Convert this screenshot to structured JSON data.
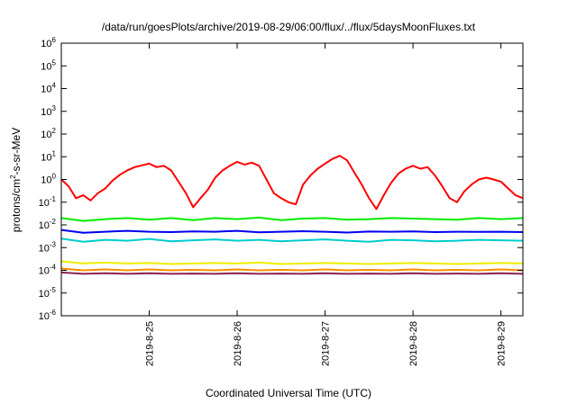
{
  "chart_data": {
    "type": "line",
    "title": "/data/run/goesPlots/archive/2019-08-29/06:00/flux/../flux/5daysMoonFluxes.txt",
    "xlabel": "Coordinated Universal Time (UTC)",
    "ylabel_base": "protons/cm",
    "ylabel_sup": "2",
    "ylabel_rest": "-s-sr-MeV",
    "yscale": "log",
    "ylim": [
      1e-06,
      1000000.0
    ],
    "xlim": [
      "2019-08-24T00:00",
      "2019-08-29T06:00"
    ],
    "y_ticks": [
      {
        "value": 1e-06,
        "base": "10",
        "exp": "-6"
      },
      {
        "value": 1e-05,
        "base": "10",
        "exp": "-5"
      },
      {
        "value": 0.0001,
        "base": "10",
        "exp": "-4"
      },
      {
        "value": 0.001,
        "base": "10",
        "exp": "-3"
      },
      {
        "value": 0.01,
        "base": "10",
        "exp": "-2"
      },
      {
        "value": 0.1,
        "base": "10",
        "exp": "-1"
      },
      {
        "value": 1,
        "base": "10",
        "exp": "0"
      },
      {
        "value": 10,
        "base": "10",
        "exp": "1"
      },
      {
        "value": 100,
        "base": "10",
        "exp": "2"
      },
      {
        "value": 1000,
        "base": "10",
        "exp": "3"
      },
      {
        "value": 10000,
        "base": "10",
        "exp": "4"
      },
      {
        "value": 100000,
        "base": "10",
        "exp": "5"
      },
      {
        "value": 1000000,
        "base": "10",
        "exp": "6"
      }
    ],
    "x_ticks": [
      "2019-8-25",
      "2019-8-26",
      "2019-8-27",
      "2019-8-28",
      "2019-8-29"
    ],
    "series": [
      {
        "color": "#ff0000",
        "points": [
          [
            "2019-08-24T00:00",
            1.0
          ],
          [
            "2019-08-24T02:00",
            0.5
          ],
          [
            "2019-08-24T04:00",
            0.15
          ],
          [
            "2019-08-24T06:00",
            0.2
          ],
          [
            "2019-08-24T08:00",
            0.12
          ],
          [
            "2019-08-24T10:00",
            0.25
          ],
          [
            "2019-08-24T12:00",
            0.4
          ],
          [
            "2019-08-24T14:00",
            0.9
          ],
          [
            "2019-08-24T16:00",
            1.6
          ],
          [
            "2019-08-24T18:00",
            2.5
          ],
          [
            "2019-08-24T20:00",
            3.5
          ],
          [
            "2019-08-24T22:00",
            4.2
          ],
          [
            "2019-08-25T00:00",
            5.0
          ],
          [
            "2019-08-25T02:00",
            3.5
          ],
          [
            "2019-08-25T04:00",
            4.0
          ],
          [
            "2019-08-25T06:00",
            2.5
          ],
          [
            "2019-08-25T08:00",
            0.8
          ],
          [
            "2019-08-25T10:00",
            0.25
          ],
          [
            "2019-08-25T12:00",
            0.06
          ],
          [
            "2019-08-25T14:00",
            0.15
          ],
          [
            "2019-08-25T16:00",
            0.35
          ],
          [
            "2019-08-25T18:00",
            1.2
          ],
          [
            "2019-08-25T20:00",
            2.5
          ],
          [
            "2019-08-25T22:00",
            4.0
          ],
          [
            "2019-08-26T00:00",
            6.0
          ],
          [
            "2019-08-26T02:00",
            4.5
          ],
          [
            "2019-08-26T04:00",
            5.5
          ],
          [
            "2019-08-26T06:00",
            4.0
          ],
          [
            "2019-08-26T08:00",
            1.0
          ],
          [
            "2019-08-26T10:00",
            0.25
          ],
          [
            "2019-08-26T12:00",
            0.15
          ],
          [
            "2019-08-26T14:00",
            0.1
          ],
          [
            "2019-08-26T16:00",
            0.08
          ],
          [
            "2019-08-26T18:00",
            0.6
          ],
          [
            "2019-08-26T20:00",
            1.5
          ],
          [
            "2019-08-26T22:00",
            3.0
          ],
          [
            "2019-08-27T00:00",
            5.0
          ],
          [
            "2019-08-27T02:00",
            8.0
          ],
          [
            "2019-08-27T04:00",
            11.0
          ],
          [
            "2019-08-27T06:00",
            7.0
          ],
          [
            "2019-08-27T08:00",
            2.0
          ],
          [
            "2019-08-27T10:00",
            0.6
          ],
          [
            "2019-08-27T12:00",
            0.15
          ],
          [
            "2019-08-27T14:00",
            0.05
          ],
          [
            "2019-08-27T16:00",
            0.2
          ],
          [
            "2019-08-27T18:00",
            0.7
          ],
          [
            "2019-08-27T20:00",
            1.8
          ],
          [
            "2019-08-27T22:00",
            3.0
          ],
          [
            "2019-08-28T00:00",
            4.0
          ],
          [
            "2019-08-28T02:00",
            3.0
          ],
          [
            "2019-08-28T04:00",
            3.5
          ],
          [
            "2019-08-28T06:00",
            1.5
          ],
          [
            "2019-08-28T08:00",
            0.5
          ],
          [
            "2019-08-28T10:00",
            0.15
          ],
          [
            "2019-08-28T12:00",
            0.1
          ],
          [
            "2019-08-28T14:00",
            0.3
          ],
          [
            "2019-08-28T16:00",
            0.6
          ],
          [
            "2019-08-28T18:00",
            1.0
          ],
          [
            "2019-08-28T20:00",
            1.2
          ],
          [
            "2019-08-28T22:00",
            1.0
          ],
          [
            "2019-08-29T00:00",
            0.8
          ],
          [
            "2019-08-29T02:00",
            0.4
          ],
          [
            "2019-08-29T04:00",
            0.2
          ],
          [
            "2019-08-29T06:00",
            0.15
          ]
        ]
      },
      {
        "color": "#00ee00",
        "points": [
          [
            "2019-08-24T00:00",
            0.02
          ],
          [
            "2019-08-24T06:00",
            0.015
          ],
          [
            "2019-08-24T12:00",
            0.018
          ],
          [
            "2019-08-24T18:00",
            0.02
          ],
          [
            "2019-08-25T00:00",
            0.017
          ],
          [
            "2019-08-25T06:00",
            0.02
          ],
          [
            "2019-08-25T12:00",
            0.016
          ],
          [
            "2019-08-25T18:00",
            0.02
          ],
          [
            "2019-08-26T00:00",
            0.018
          ],
          [
            "2019-08-26T06:00",
            0.021
          ],
          [
            "2019-08-26T12:00",
            0.016
          ],
          [
            "2019-08-26T18:00",
            0.019
          ],
          [
            "2019-08-27T00:00",
            0.02
          ],
          [
            "2019-08-27T06:00",
            0.017
          ],
          [
            "2019-08-27T12:00",
            0.018
          ],
          [
            "2019-08-27T18:00",
            0.02
          ],
          [
            "2019-08-28T00:00",
            0.019
          ],
          [
            "2019-08-28T06:00",
            0.018
          ],
          [
            "2019-08-28T12:00",
            0.017
          ],
          [
            "2019-08-28T18:00",
            0.02
          ],
          [
            "2019-08-29T00:00",
            0.018
          ],
          [
            "2019-08-29T06:00",
            0.02
          ]
        ]
      },
      {
        "color": "#00cccc",
        "points": [
          [
            "2019-08-24T00:00",
            0.0025
          ],
          [
            "2019-08-24T06:00",
            0.0018
          ],
          [
            "2019-08-24T12:00",
            0.0022
          ],
          [
            "2019-08-24T18:00",
            0.002
          ],
          [
            "2019-08-25T00:00",
            0.0024
          ],
          [
            "2019-08-25T06:00",
            0.0019
          ],
          [
            "2019-08-25T12:00",
            0.0021
          ],
          [
            "2019-08-25T18:00",
            0.0023
          ],
          [
            "2019-08-26T00:00",
            0.002
          ],
          [
            "2019-08-26T06:00",
            0.0022
          ],
          [
            "2019-08-26T12:00",
            0.0019
          ],
          [
            "2019-08-26T18:00",
            0.0021
          ],
          [
            "2019-08-27T00:00",
            0.0023
          ],
          [
            "2019-08-27T06:00",
            0.002
          ],
          [
            "2019-08-27T12:00",
            0.0018
          ],
          [
            "2019-08-27T18:00",
            0.0022
          ],
          [
            "2019-08-28T00:00",
            0.0021
          ],
          [
            "2019-08-28T06:00",
            0.0019
          ],
          [
            "2019-08-28T12:00",
            0.002
          ],
          [
            "2019-08-28T18:00",
            0.0022
          ],
          [
            "2019-08-29T00:00",
            0.0021
          ],
          [
            "2019-08-29T06:00",
            0.002
          ]
        ]
      },
      {
        "color": "#0000ee",
        "points": [
          [
            "2019-08-24T00:00",
            0.006
          ],
          [
            "2019-08-24T06:00",
            0.0045
          ],
          [
            "2019-08-24T12:00",
            0.005
          ],
          [
            "2019-08-24T18:00",
            0.0055
          ],
          [
            "2019-08-25T00:00",
            0.005
          ],
          [
            "2019-08-25T06:00",
            0.0048
          ],
          [
            "2019-08-25T12:00",
            0.0052
          ],
          [
            "2019-08-25T18:00",
            0.005
          ],
          [
            "2019-08-26T00:00",
            0.0055
          ],
          [
            "2019-08-26T06:00",
            0.0047
          ],
          [
            "2019-08-26T12:00",
            0.005
          ],
          [
            "2019-08-26T18:00",
            0.0053
          ],
          [
            "2019-08-27T00:00",
            0.005
          ],
          [
            "2019-08-27T06:00",
            0.0046
          ],
          [
            "2019-08-27T12:00",
            0.0051
          ],
          [
            "2019-08-27T18:00",
            0.005
          ],
          [
            "2019-08-28T00:00",
            0.0052
          ],
          [
            "2019-08-28T06:00",
            0.0048
          ],
          [
            "2019-08-28T12:00",
            0.005
          ],
          [
            "2019-08-28T18:00",
            0.0049
          ],
          [
            "2019-08-29T00:00",
            0.005
          ],
          [
            "2019-08-29T06:00",
            0.0048
          ]
        ]
      },
      {
        "color": "#eeee00",
        "points": [
          [
            "2019-08-24T00:00",
            0.00025
          ],
          [
            "2019-08-24T06:00",
            0.0002
          ],
          [
            "2019-08-24T12:00",
            0.00022
          ],
          [
            "2019-08-24T18:00",
            0.0002
          ],
          [
            "2019-08-25T00:00",
            0.00021
          ],
          [
            "2019-08-25T06:00",
            0.00019
          ],
          [
            "2019-08-25T12:00",
            0.0002
          ],
          [
            "2019-08-25T18:00",
            0.00021
          ],
          [
            "2019-08-26T00:00",
            0.0002
          ],
          [
            "2019-08-26T06:00",
            0.00022
          ],
          [
            "2019-08-26T12:00",
            0.00019
          ],
          [
            "2019-08-26T18:00",
            0.0002
          ],
          [
            "2019-08-27T00:00",
            0.00021
          ],
          [
            "2019-08-27T06:00",
            0.0002
          ],
          [
            "2019-08-27T12:00",
            0.00019
          ],
          [
            "2019-08-27T18:00",
            0.0002
          ],
          [
            "2019-08-28T00:00",
            0.00021
          ],
          [
            "2019-08-28T06:00",
            0.0002
          ],
          [
            "2019-08-28T12:00",
            0.00019
          ],
          [
            "2019-08-28T18:00",
            0.0002
          ],
          [
            "2019-08-29T00:00",
            0.00021
          ],
          [
            "2019-08-29T06:00",
            0.0002
          ]
        ]
      },
      {
        "color": "#ff8c00",
        "points": [
          [
            "2019-08-24T00:00",
            0.00012
          ],
          [
            "2019-08-24T06:00",
            0.0001
          ],
          [
            "2019-08-24T12:00",
            0.00011
          ],
          [
            "2019-08-24T18:00",
            0.0001
          ],
          [
            "2019-08-25T00:00",
            0.00011
          ],
          [
            "2019-08-25T06:00",
            0.0001
          ],
          [
            "2019-08-25T12:00",
            0.000105
          ],
          [
            "2019-08-25T18:00",
            0.0001
          ],
          [
            "2019-08-26T00:00",
            0.00011
          ],
          [
            "2019-08-26T06:00",
            0.0001
          ],
          [
            "2019-08-26T12:00",
            0.000105
          ],
          [
            "2019-08-26T18:00",
            0.0001
          ],
          [
            "2019-08-27T00:00",
            0.00011
          ],
          [
            "2019-08-27T06:00",
            0.0001
          ],
          [
            "2019-08-27T12:00",
            0.000105
          ],
          [
            "2019-08-27T18:00",
            0.0001
          ],
          [
            "2019-08-28T00:00",
            0.00011
          ],
          [
            "2019-08-28T06:00",
            0.0001
          ],
          [
            "2019-08-28T12:00",
            0.000105
          ],
          [
            "2019-08-28T18:00",
            0.0001
          ],
          [
            "2019-08-29T00:00",
            0.00011
          ],
          [
            "2019-08-29T06:00",
            0.0001
          ]
        ]
      },
      {
        "color": "#8b2252",
        "points": [
          [
            "2019-08-24T00:00",
            8e-05
          ],
          [
            "2019-08-24T06:00",
            7e-05
          ],
          [
            "2019-08-24T12:00",
            7.5e-05
          ],
          [
            "2019-08-24T18:00",
            7e-05
          ],
          [
            "2019-08-25T00:00",
            7.5e-05
          ],
          [
            "2019-08-25T06:00",
            7e-05
          ],
          [
            "2019-08-25T12:00",
            7.2e-05
          ],
          [
            "2019-08-25T18:00",
            7e-05
          ],
          [
            "2019-08-26T00:00",
            7.5e-05
          ],
          [
            "2019-08-26T06:00",
            7e-05
          ],
          [
            "2019-08-26T12:00",
            7.2e-05
          ],
          [
            "2019-08-26T18:00",
            7e-05
          ],
          [
            "2019-08-27T00:00",
            7.5e-05
          ],
          [
            "2019-08-27T06:00",
            7e-05
          ],
          [
            "2019-08-27T12:00",
            7.2e-05
          ],
          [
            "2019-08-27T18:00",
            7e-05
          ],
          [
            "2019-08-28T00:00",
            7.5e-05
          ],
          [
            "2019-08-28T06:00",
            7e-05
          ],
          [
            "2019-08-28T12:00",
            7.2e-05
          ],
          [
            "2019-08-28T18:00",
            7e-05
          ],
          [
            "2019-08-29T00:00",
            7.5e-05
          ],
          [
            "2019-08-29T06:00",
            7e-05
          ]
        ]
      }
    ],
    "grid": false,
    "legend": "none"
  }
}
